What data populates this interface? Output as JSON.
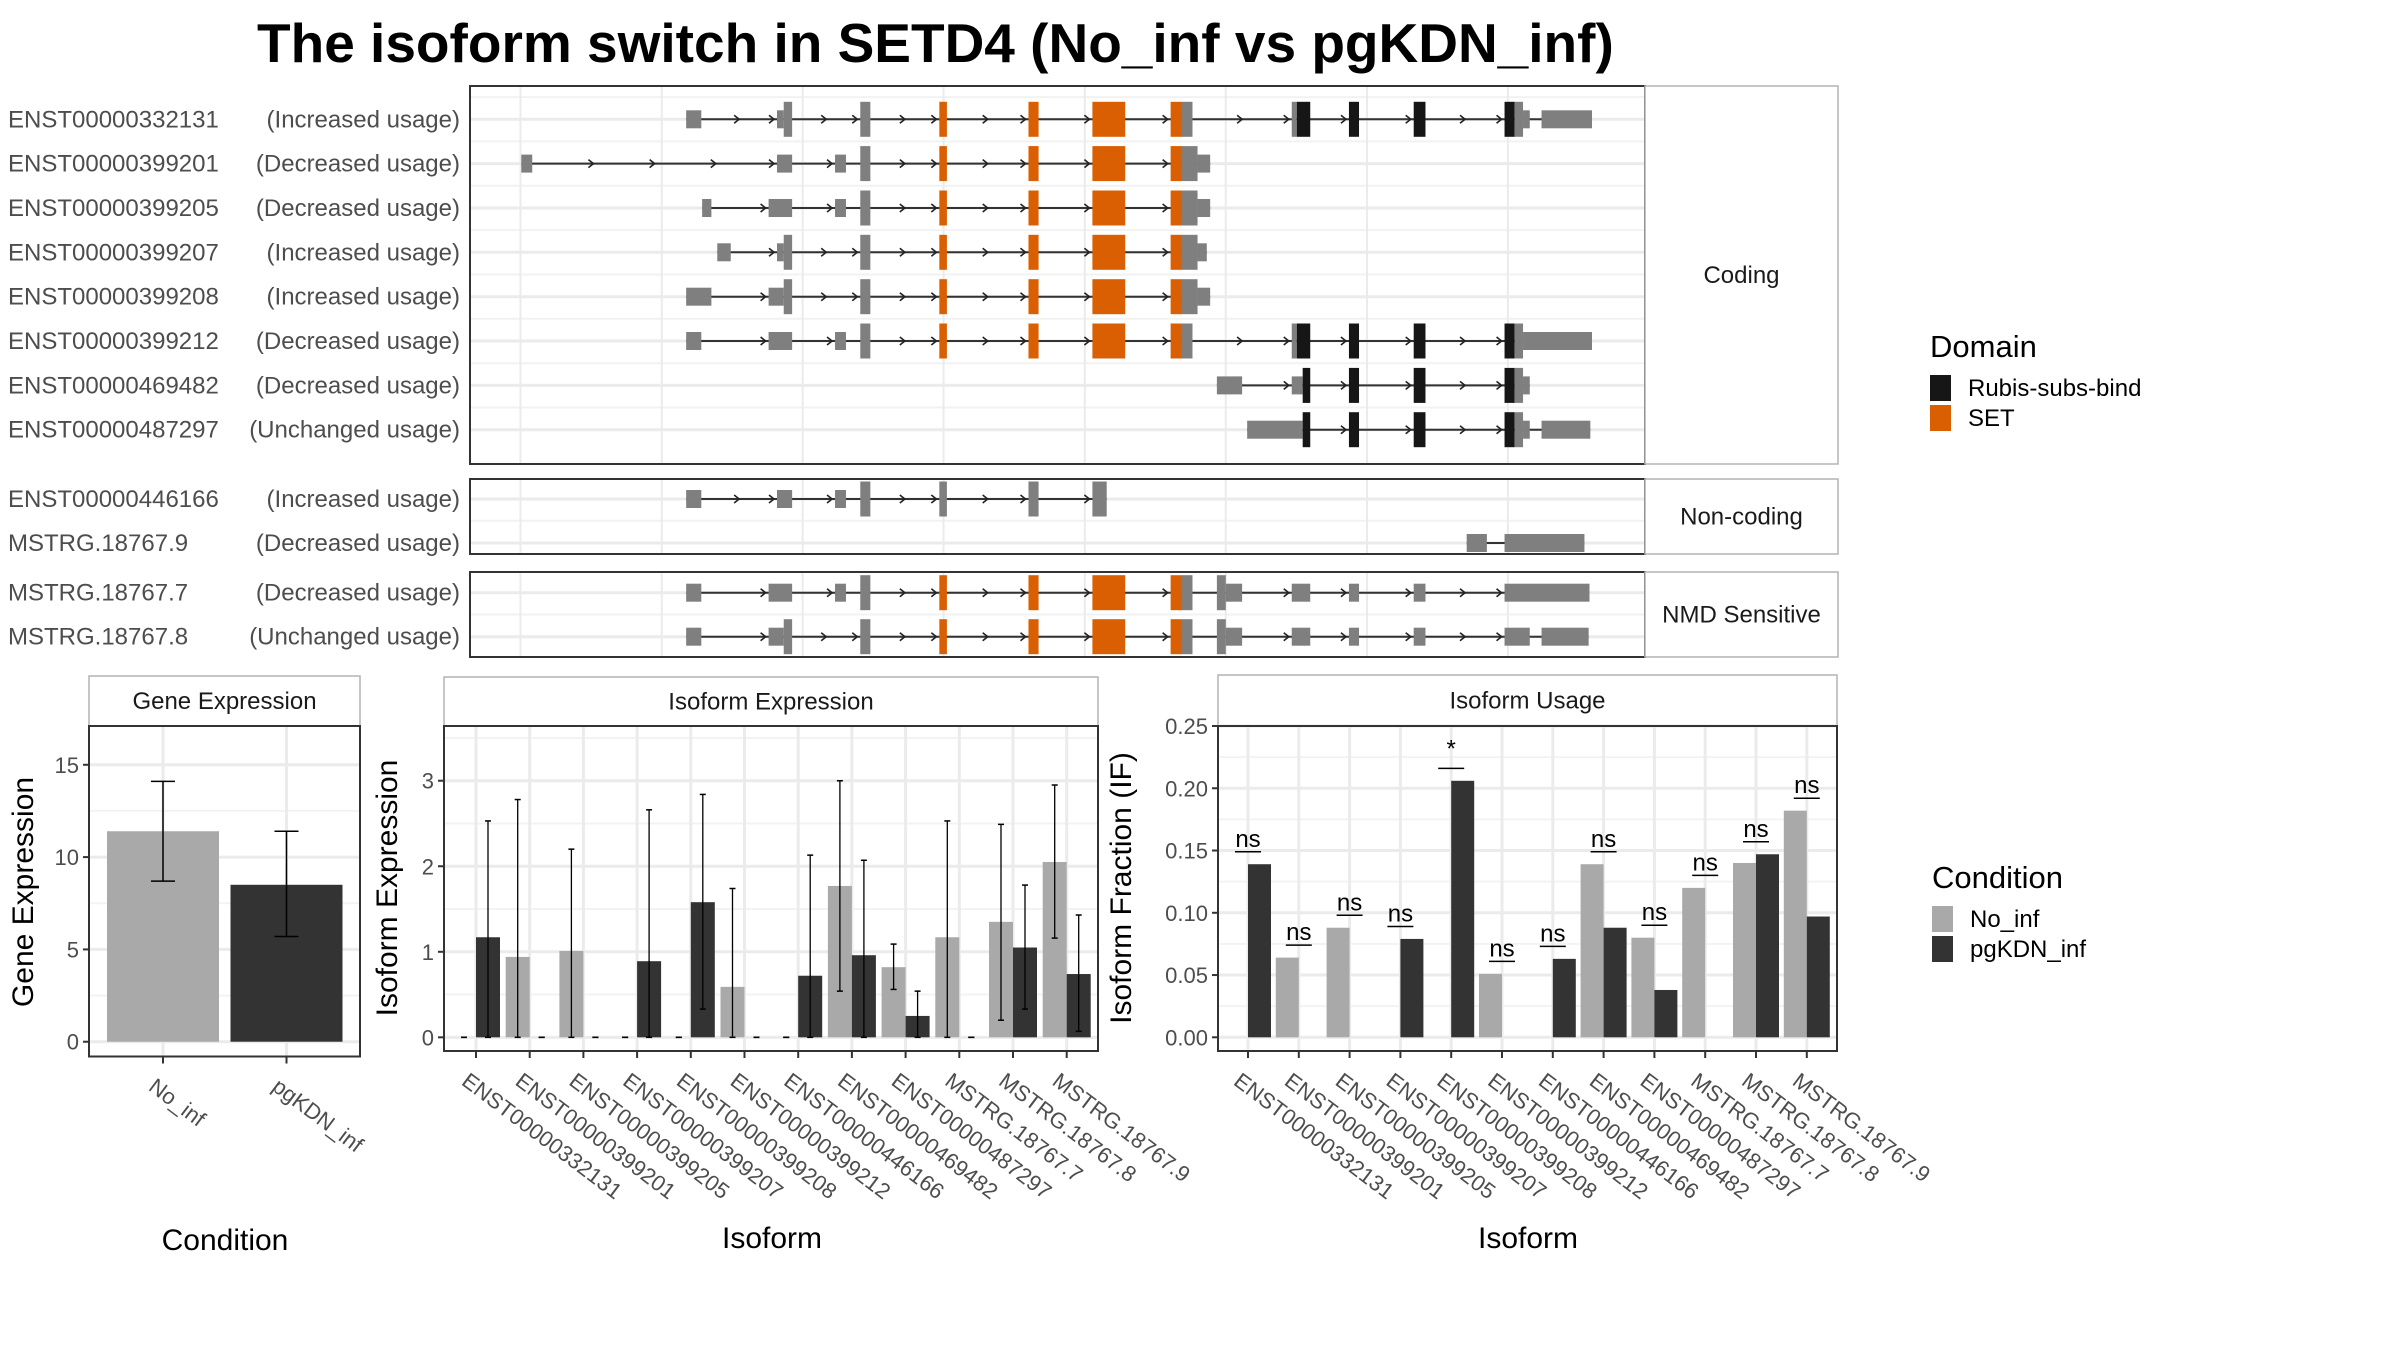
{
  "title": "The isoform switch in SETD4 (No_inf vs pgKDN_inf)",
  "transcript_plot": {
    "categories": [
      "Coding",
      "Non-coding",
      "NMD Sensitive"
    ],
    "transcripts": [
      {
        "id": "ENST00000332131",
        "usage": "(Increased usage)",
        "category": "Coding"
      },
      {
        "id": "ENST00000399201",
        "usage": "(Decreased usage)",
        "category": "Coding"
      },
      {
        "id": "ENST00000399205",
        "usage": "(Decreased usage)",
        "category": "Coding"
      },
      {
        "id": "ENST00000399207",
        "usage": "(Increased usage)",
        "category": "Coding"
      },
      {
        "id": "ENST00000399208",
        "usage": "(Increased usage)",
        "category": "Coding"
      },
      {
        "id": "ENST00000399212",
        "usage": "(Decreased usage)",
        "category": "Coding"
      },
      {
        "id": "ENST00000469482",
        "usage": "(Decreased usage)",
        "category": "Coding"
      },
      {
        "id": "ENST00000487297",
        "usage": "(Unchanged usage)",
        "category": "Coding"
      },
      {
        "id": "ENST00000446166",
        "usage": "(Increased usage)",
        "category": "Non-coding"
      },
      {
        "id": "MSTRG.18767.9",
        "usage": "(Decreased usage)",
        "category": "Non-coding"
      },
      {
        "id": "MSTRG.18767.7",
        "usage": "(Decreased usage)",
        "category": "NMD Sensitive"
      },
      {
        "id": "MSTRG.18767.8",
        "usage": "(Unchanged usage)",
        "category": "NMD Sensitive"
      }
    ],
    "domain_legend": {
      "title": "Domain",
      "items": [
        {
          "label": "Rubis-subs-bind",
          "color": "#161616"
        },
        {
          "label": "SET",
          "color": "#d95f02"
        }
      ]
    },
    "colors": {
      "exon": "#7f7f7f",
      "intron": "#333333"
    }
  },
  "condition_legend": {
    "title": "Condition",
    "items": [
      {
        "label": "No_inf",
        "color": "#a9a9a9"
      },
      {
        "label": "pgKDN_inf",
        "color": "#333333"
      }
    ]
  },
  "chart_data": [
    {
      "type": "bar",
      "title": "Gene Expression",
      "xlabel": "Condition",
      "ylabel": "Gene Expression",
      "categories": [
        "No_inf",
        "pgKDN_inf"
      ],
      "values": [
        11.4,
        8.5
      ],
      "error_low": [
        8.7,
        5.7
      ],
      "error_high": [
        14.1,
        11.4
      ],
      "yticks": [
        0,
        5,
        10,
        15
      ],
      "ylim": [
        -0.8,
        17.1
      ],
      "grid": true
    },
    {
      "type": "bar",
      "title": "Isoform Expression",
      "xlabel": "Isoform",
      "ylabel": "Isoform Expression",
      "categories": [
        "ENST00000332131",
        "ENST00000399201",
        "ENST00000399205",
        "ENST00000399207",
        "ENST00000399208",
        "ENST00000399212",
        "ENST00000446166",
        "ENST00000469482",
        "ENST00000487297",
        "MSTRG.18767.7",
        "MSTRG.18767.8",
        "MSTRG.18767.9"
      ],
      "series": [
        {
          "name": "No_inf",
          "values": [
            0,
            0.94,
            1.01,
            0,
            0,
            0.59,
            0,
            1.77,
            0.82,
            1.17,
            1.35,
            2.05
          ],
          "error_low": [
            0,
            0,
            0,
            0,
            0,
            0,
            0,
            0.54,
            0.56,
            0,
            0.2,
            1.16
          ],
          "error_high": [
            0,
            2.78,
            2.2,
            0,
            0,
            1.74,
            0,
            3.0,
            1.09,
            2.53,
            2.49,
            2.95
          ]
        },
        {
          "name": "pgKDN_inf",
          "values": [
            1.17,
            0,
            0,
            0.89,
            1.58,
            0,
            0.72,
            0.96,
            0.25,
            0,
            1.05,
            0.74
          ],
          "error_low": [
            0,
            0,
            0,
            0,
            0.33,
            0,
            0,
            0,
            0,
            0,
            0.33,
            0.07
          ],
          "error_high": [
            2.53,
            0,
            0,
            2.66,
            2.84,
            0,
            2.13,
            2.07,
            0.54,
            0,
            1.78,
            1.43
          ]
        }
      ],
      "yticks": [
        0,
        1,
        2,
        3
      ],
      "ylim": [
        -0.16,
        3.64
      ],
      "grid": true
    },
    {
      "type": "bar",
      "title": "Isoform Usage",
      "xlabel": "Isoform",
      "ylabel": "Isoform Fraction (IF)",
      "categories": [
        "ENST00000332131",
        "ENST00000399201",
        "ENST00000399205",
        "ENST00000399207",
        "ENST00000399208",
        "ENST00000399212",
        "ENST00000446166",
        "ENST00000469482",
        "ENST00000487297",
        "MSTRG.18767.7",
        "MSTRG.18767.8",
        "MSTRG.18767.9"
      ],
      "series": [
        {
          "name": "No_inf",
          "values": [
            0,
            0.064,
            0.088,
            0,
            0,
            0.051,
            0,
            0.139,
            0.08,
            0.12,
            0.14,
            0.182
          ]
        },
        {
          "name": "pgKDN_inf",
          "values": [
            0.139,
            0,
            0,
            0.079,
            0.206,
            0,
            0.063,
            0.088,
            0.038,
            0,
            0.147,
            0.097
          ]
        }
      ],
      "significance": [
        "ns",
        "ns",
        "ns",
        "ns",
        "*",
        "ns",
        "ns",
        "ns",
        "ns",
        "ns",
        "ns",
        "ns"
      ],
      "yticks": [
        "0.00",
        "0.05",
        "0.10",
        "0.15",
        "0.20",
        "0.25"
      ],
      "ylim": [
        -0.011,
        0.25
      ],
      "grid": true
    }
  ]
}
